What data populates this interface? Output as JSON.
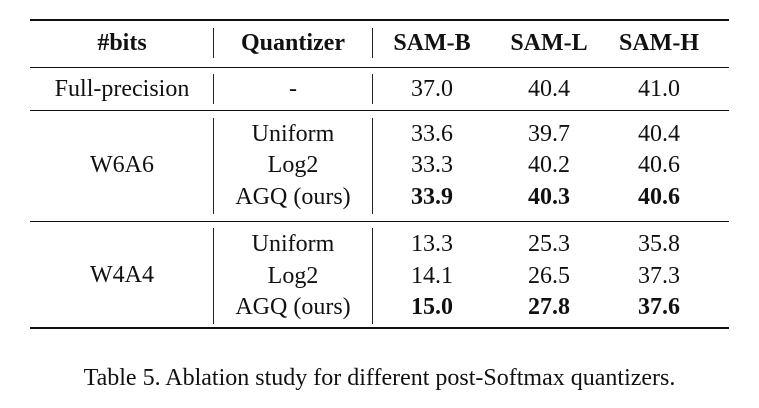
{
  "table": {
    "headers": [
      "#bits",
      "Quantizer",
      "SAM-B",
      "SAM-L",
      "SAM-H"
    ],
    "full_precision": {
      "bits": "Full-precision",
      "quantizer": "-",
      "values": [
        "37.0",
        "40.4",
        "41.0"
      ]
    },
    "groups": [
      {
        "bits": "W6A6",
        "rows": [
          {
            "quantizer": "Uniform",
            "values": [
              "33.6",
              "39.7",
              "40.4"
            ],
            "bold": false
          },
          {
            "quantizer": "Log2",
            "values": [
              "33.3",
              "40.2",
              "40.6"
            ],
            "bold": false
          },
          {
            "quantizer": "AGQ (ours)",
            "values": [
              "33.9",
              "40.3",
              "40.6"
            ],
            "bold": true
          }
        ]
      },
      {
        "bits": "W4A4",
        "rows": [
          {
            "quantizer": "Uniform",
            "values": [
              "13.3",
              "25.3",
              "35.8"
            ],
            "bold": false
          },
          {
            "quantizer": "Log2",
            "values": [
              "14.1",
              "26.5",
              "37.3"
            ],
            "bold": false
          },
          {
            "quantizer": "AGQ (ours)",
            "values": [
              "15.0",
              "27.8",
              "37.6"
            ],
            "bold": true
          }
        ]
      }
    ]
  },
  "caption": "Table 5. Ablation study for different post-Softmax quantizers."
}
